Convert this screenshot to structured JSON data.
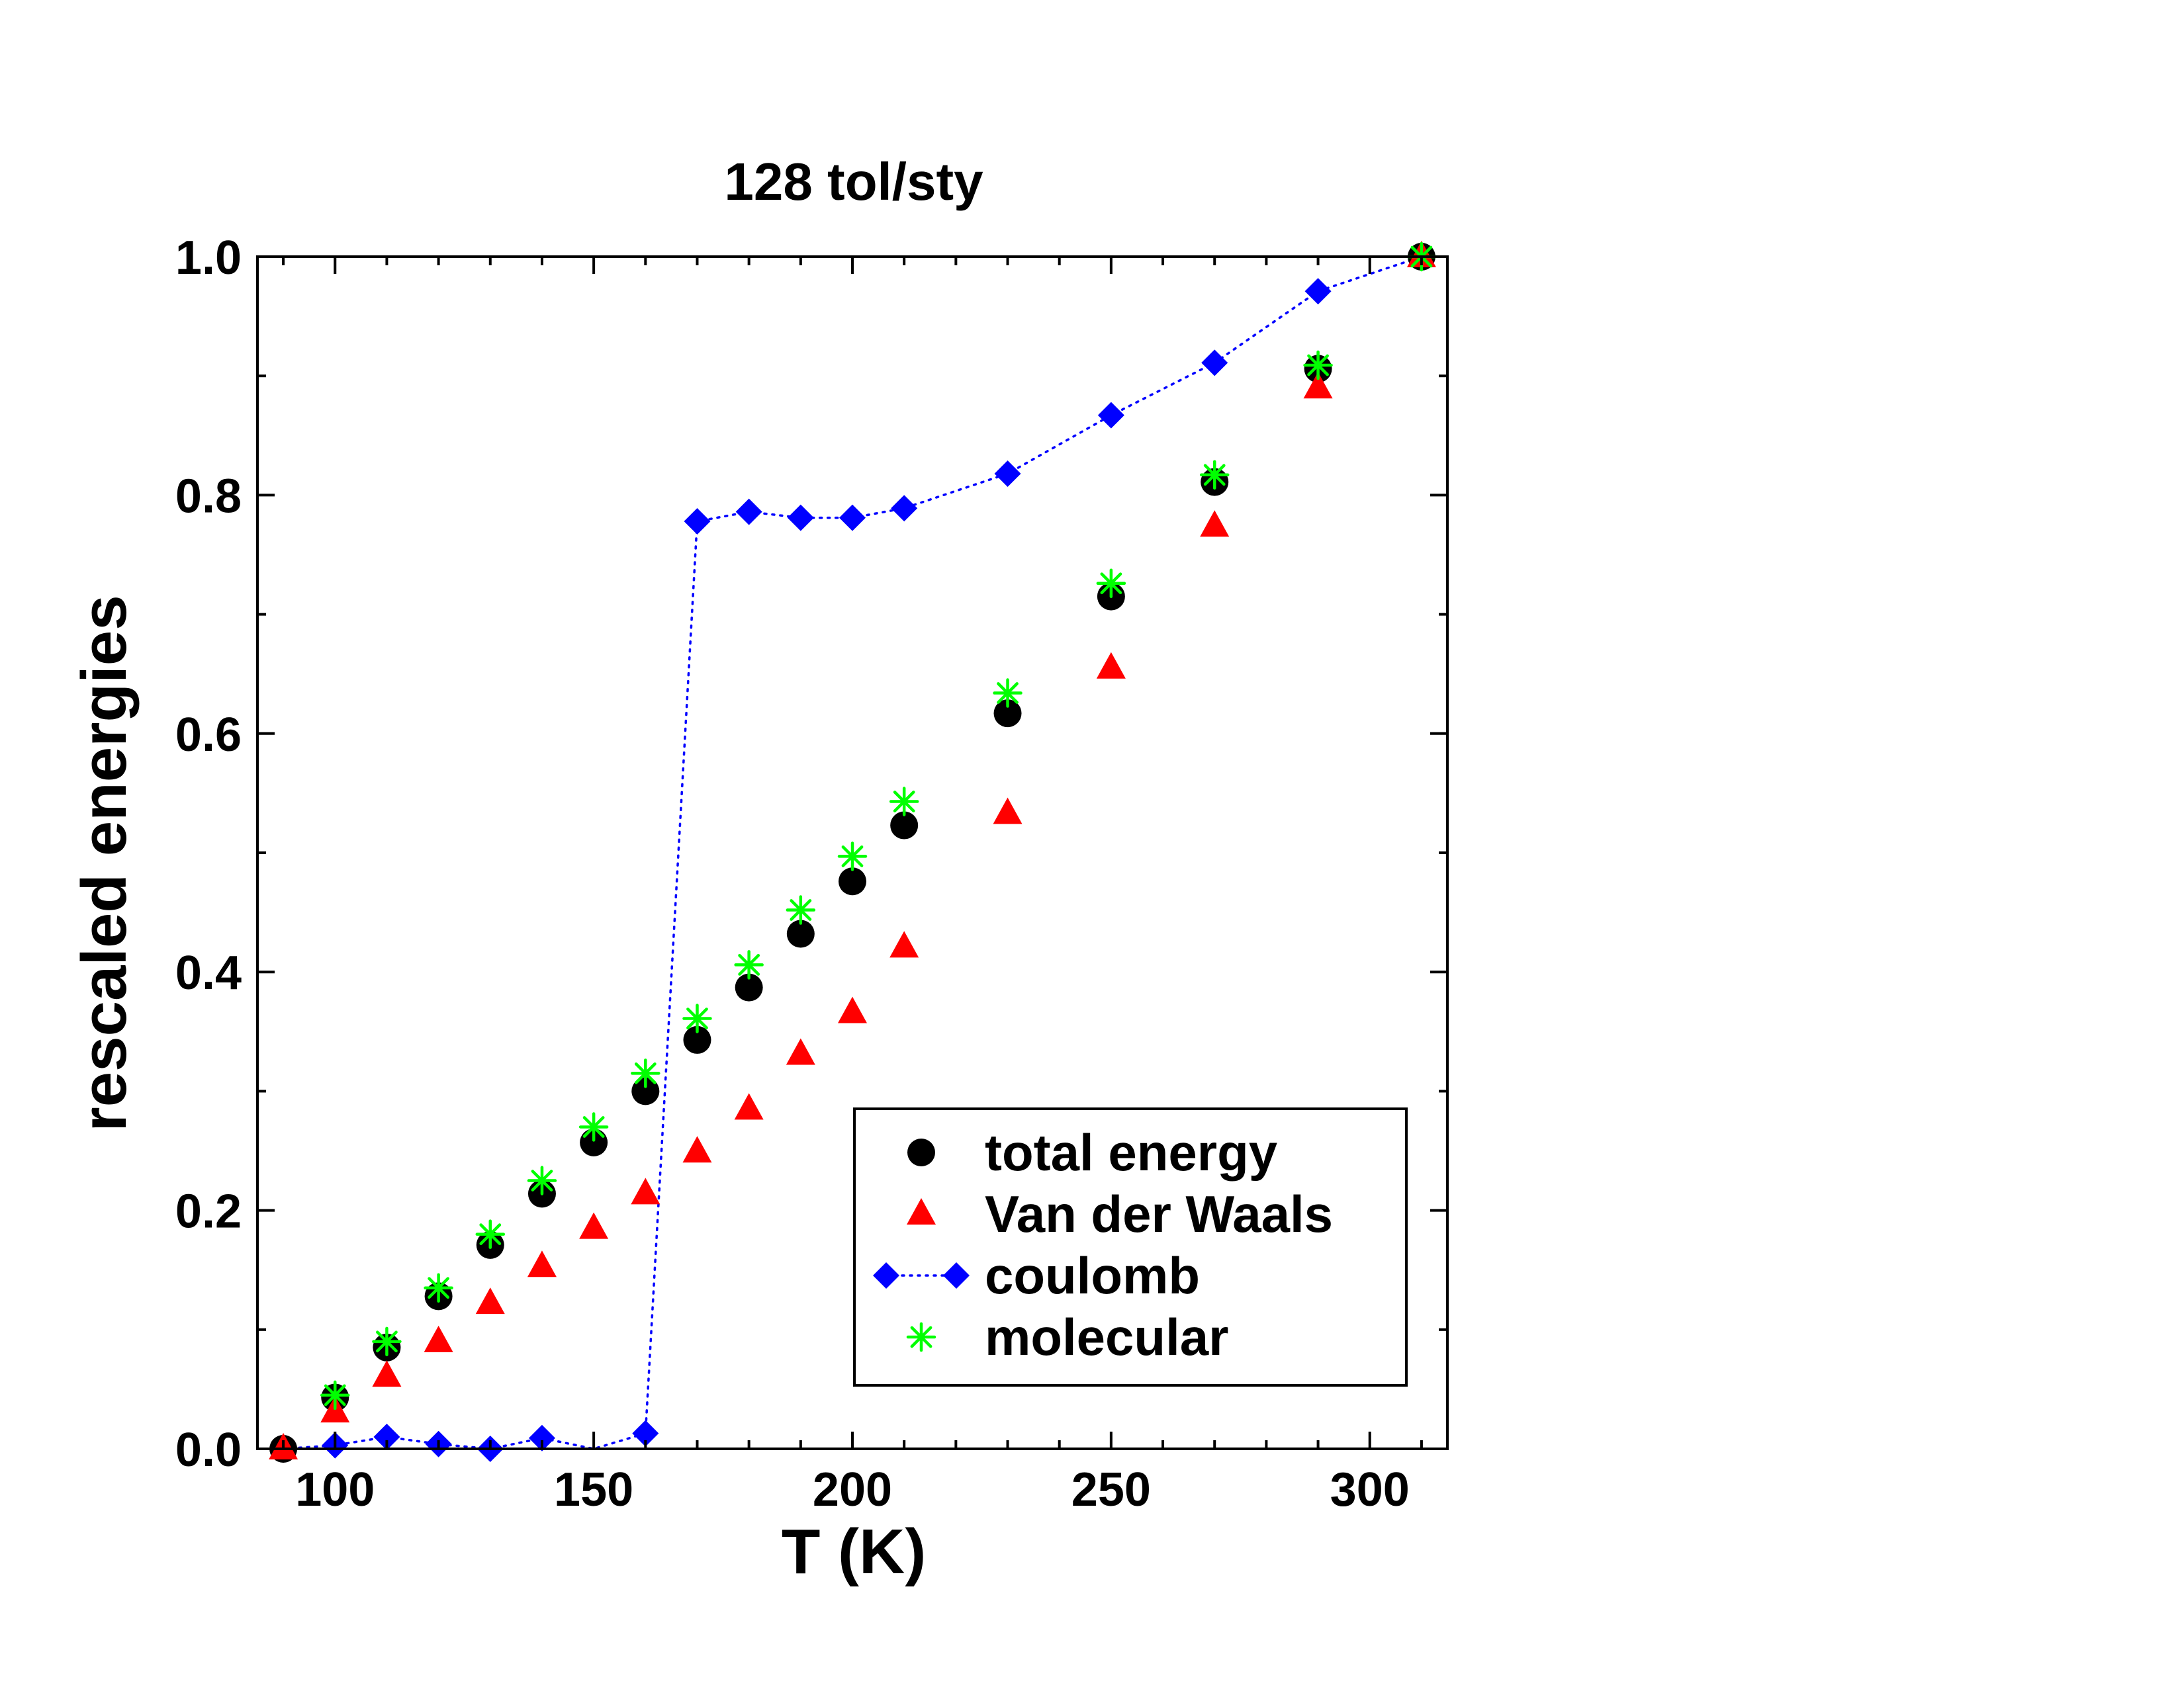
{
  "chart_data": {
    "type": "scatter",
    "title": "128 tol/sty",
    "xlabel": "T (K)",
    "ylabel": "rescaled energies",
    "xlim": [
      85,
      315
    ],
    "ylim": [
      0,
      1.0
    ],
    "x_major_ticks": [
      100,
      150,
      200,
      250,
      300
    ],
    "x_minor_step": 10,
    "y_major_ticks": [
      0.0,
      0.2,
      0.4,
      0.6,
      0.8,
      1.0
    ],
    "y_minor_step": 0.1,
    "grid": false,
    "legend_position": "bottom-right",
    "series": [
      {
        "name": "total energy",
        "marker": "circle",
        "color": "#000000",
        "line": false,
        "x": [
          90,
          100,
          110,
          120,
          130,
          140,
          150,
          160,
          170,
          180,
          190,
          200,
          210,
          230,
          250,
          270,
          290,
          310
        ],
        "y": [
          0.0,
          0.043,
          0.085,
          0.128,
          0.171,
          0.214,
          0.257,
          0.3,
          0.343,
          0.387,
          0.432,
          0.476,
          0.523,
          0.617,
          0.715,
          0.811,
          0.906,
          1.0
        ]
      },
      {
        "name": "Van der Waals",
        "marker": "triangle",
        "color": "#ff0000",
        "line": false,
        "x": [
          90,
          100,
          110,
          120,
          130,
          140,
          150,
          160,
          170,
          180,
          190,
          200,
          210,
          230,
          250,
          270,
          290,
          310
        ],
        "y": [
          0.0,
          0.031,
          0.061,
          0.09,
          0.122,
          0.153,
          0.185,
          0.214,
          0.249,
          0.285,
          0.331,
          0.366,
          0.421,
          0.533,
          0.655,
          0.774,
          0.89,
          1.0
        ]
      },
      {
        "name": "coulomb",
        "marker": "diamond",
        "color": "#0000ff",
        "line": true,
        "line_style": "dotted",
        "x": [
          90,
          100,
          110,
          120,
          130,
          140,
          150,
          160,
          170,
          180,
          190,
          200,
          210,
          230,
          250,
          270,
          290,
          310
        ],
        "y": [
          0.0,
          0.003,
          0.01,
          0.004,
          0.0,
          0.009,
          0.0,
          0.013,
          0.778,
          0.786,
          0.781,
          0.781,
          0.789,
          0.818,
          0.867,
          0.911,
          0.971,
          1.0
        ],
        "y_plotted": [
          true,
          true,
          true,
          true,
          true,
          true,
          false,
          true,
          true,
          true,
          true,
          true,
          true,
          true,
          true,
          true,
          true,
          true
        ]
      },
      {
        "name": "molecular",
        "marker": "asterisk",
        "color": "#00ff00",
        "line": false,
        "x": [
          100,
          110,
          120,
          130,
          140,
          150,
          160,
          170,
          180,
          190,
          200,
          210,
          230,
          250,
          270,
          290,
          310
        ],
        "y": [
          0.045,
          0.09,
          0.135,
          0.18,
          0.225,
          0.27,
          0.315,
          0.361,
          0.406,
          0.452,
          0.497,
          0.543,
          0.634,
          0.726,
          0.817,
          0.909,
          1.0
        ]
      }
    ]
  }
}
